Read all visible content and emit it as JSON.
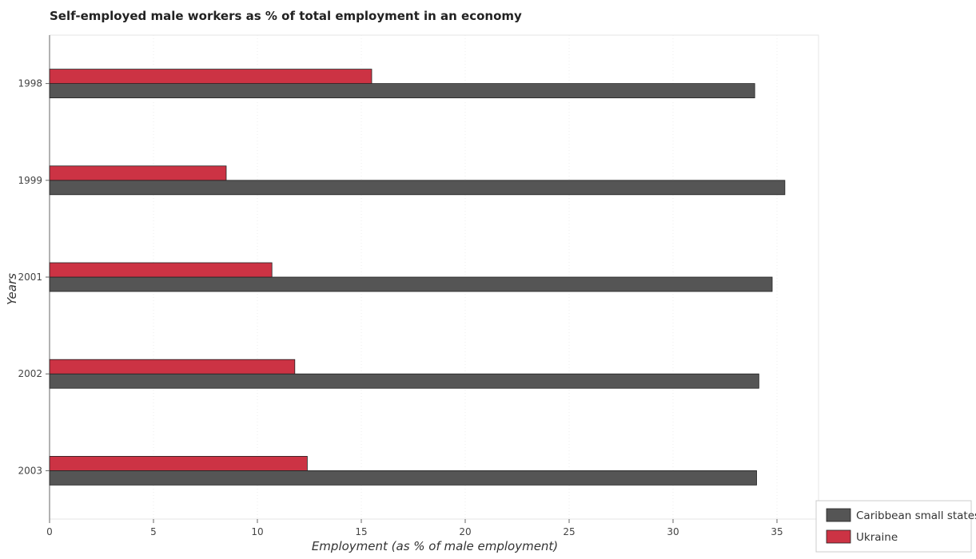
{
  "chart_data": {
    "type": "bar",
    "orientation": "horizontal",
    "title": "Self-employed male workers as % of total employment in an economy",
    "xlabel": "Employment (as % of male employment)",
    "ylabel": "Years",
    "categories": [
      "1998",
      "1999",
      "2001",
      "2002",
      "2003"
    ],
    "series": [
      {
        "name": "Caribbean small states",
        "color": "#555555",
        "values": [
          33.93,
          35.38,
          34.77,
          34.13,
          34.02
        ]
      },
      {
        "name": "Ukraine",
        "color": "#cc3344",
        "values": [
          15.5,
          8.5,
          10.7,
          11.8,
          12.4
        ]
      }
    ],
    "xlim": [
      0,
      37
    ],
    "xticks": [
      0,
      5,
      10,
      15,
      20,
      25,
      30,
      35
    ],
    "grid": true,
    "legend_position": "bottom-right"
  }
}
